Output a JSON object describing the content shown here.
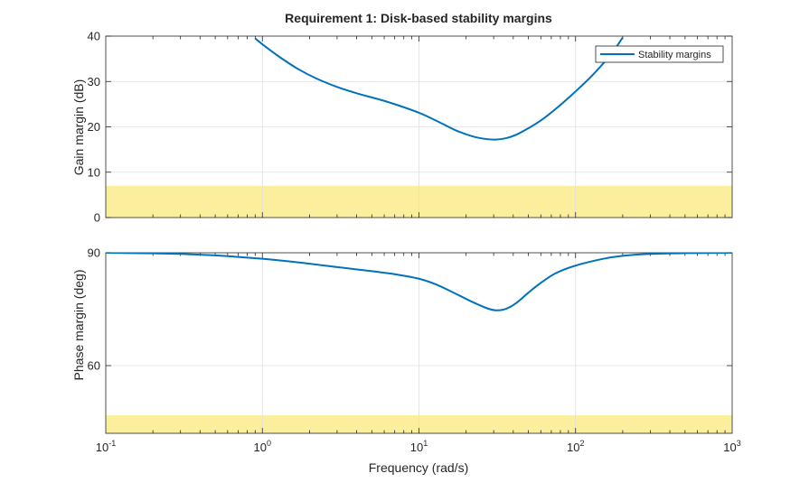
{
  "chart_data": [
    {
      "type": "line",
      "panel": "top",
      "title": "Requirement 1: Disk-based stability margins",
      "xlabel": "",
      "ylabel": "Gain margin (dB)",
      "xscale": "log",
      "xlim": [
        0.1,
        1000
      ],
      "ylim": [
        0,
        40
      ],
      "yticks": [
        0,
        10,
        20,
        30,
        40
      ],
      "ytick_labels": [
        "0",
        "10",
        "20",
        "30",
        "40"
      ],
      "grid": true,
      "legend": {
        "placement": "top-right",
        "entries": [
          "Stability margins"
        ]
      },
      "requirement_band": {
        "y0": 0,
        "y1": 7,
        "color": "#fbef9e"
      },
      "series": [
        {
          "name": "Stability margins",
          "color": "#0072bd",
          "x": [
            0.9,
            1.0,
            1.3,
            1.7,
            2.2,
            3.0,
            4.0,
            5.5,
            7.0,
            10,
            13,
            17,
            22,
            27,
            31,
            36,
            42,
            50,
            60,
            75,
            100,
            130,
            170,
            200
          ],
          "y": [
            39.5,
            38.2,
            35.3,
            32.7,
            30.7,
            28.8,
            27.4,
            26.1,
            25.0,
            23.1,
            21.3,
            19.3,
            17.9,
            17.3,
            17.2,
            17.5,
            18.3,
            19.7,
            21.4,
            24.0,
            27.8,
            31.6,
            36.2,
            39.7
          ]
        }
      ]
    },
    {
      "type": "line",
      "panel": "bottom",
      "title": "",
      "xlabel": "Frequency (rad/s)",
      "ylabel": "Phase margin (deg)",
      "xscale": "log",
      "xlim": [
        0.1,
        1000
      ],
      "ylim": [
        42,
        90
      ],
      "yticks": [
        60,
        90
      ],
      "ytick_labels": [
        "60",
        "90"
      ],
      "xticks": [
        0.1,
        1,
        10,
        100,
        1000
      ],
      "xtick_labels": [
        {
          "base": "10",
          "exp": "-1"
        },
        {
          "base": "10",
          "exp": "0"
        },
        {
          "base": "10",
          "exp": "1"
        },
        {
          "base": "10",
          "exp": "2"
        },
        {
          "base": "10",
          "exp": "3"
        }
      ],
      "grid": true,
      "requirement_band": {
        "y0": 42,
        "y1": 46.8,
        "color": "#fbef9e"
      },
      "series": [
        {
          "name": "Stability margins",
          "color": "#0072bd",
          "x": [
            0.1,
            0.2,
            0.3,
            0.5,
            0.7,
            1.0,
            1.5,
            2.0,
            3.0,
            5.0,
            7.0,
            10,
            13,
            17,
            22,
            27,
            31,
            36,
            42,
            50,
            60,
            75,
            100,
            150,
            200,
            300,
            500,
            1000
          ],
          "y": [
            90,
            89.85,
            89.7,
            89.3,
            88.9,
            88.4,
            87.7,
            87.1,
            86.2,
            85.1,
            84.3,
            83.1,
            81.5,
            79.2,
            76.9,
            75.3,
            74.7,
            75.1,
            76.7,
            79.4,
            82.0,
            84.6,
            86.6,
            88.4,
            89.2,
            89.7,
            89.9,
            90
          ]
        }
      ]
    }
  ]
}
